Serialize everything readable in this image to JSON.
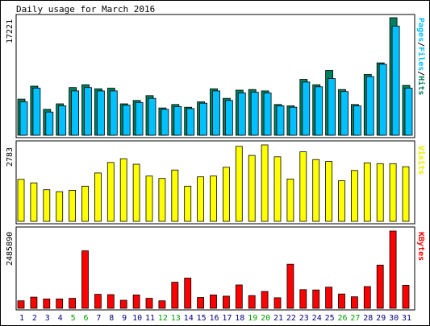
{
  "chart_data": {
    "type": "bar",
    "title": "Daily usage for March 2016",
    "categories": [
      "1",
      "2",
      "3",
      "4",
      "5",
      "6",
      "7",
      "8",
      "9",
      "10",
      "11",
      "12",
      "13",
      "14",
      "15",
      "16",
      "17",
      "18",
      "19",
      "20",
      "21",
      "22",
      "23",
      "24",
      "25",
      "26",
      "27",
      "28",
      "29",
      "30",
      "31"
    ],
    "weekend_days": [
      "5",
      "6",
      "12",
      "13",
      "19",
      "20",
      "26",
      "27"
    ],
    "colors": {
      "hits": "#00805c",
      "files": "#00c0ff",
      "visits": "#ffff00",
      "kbytes": "#ff0000",
      "weekend_label": "#00a000",
      "weekday_label": "#000080",
      "panel_bg": "#ffffff",
      "frame": "#000000"
    },
    "panels": [
      {
        "name": "hits-files",
        "ylabel": "Pages/Files/Hits",
        "ylabel_parts": [
          {
            "text": "Pages",
            "color": "#00c0ff"
          },
          {
            "text": "/",
            "color": "#000000"
          },
          {
            "text": "Files",
            "color": "#00c0ff"
          },
          {
            "text": "/",
            "color": "#000000"
          },
          {
            "text": "Hits",
            "color": "#00805c"
          }
        ],
        "max_label": "17221",
        "ylim": [
          0,
          17221
        ],
        "series": [
          {
            "name": "Hits",
            "color": "#00805c",
            "values": [
              5300,
              7200,
              3800,
              4600,
              7000,
              7400,
              6800,
              6900,
              4600,
              5100,
              5800,
              4000,
              4500,
              4100,
              4900,
              6800,
              5400,
              6600,
              6700,
              6500,
              4500,
              4300,
              8200,
              7400,
              9500,
              6700,
              4500,
              8900,
              10600,
              17221,
              7300
            ]
          },
          {
            "name": "Files",
            "color": "#00c0ff",
            "values": [
              4900,
              6900,
              3400,
              4300,
              6500,
              7000,
              6500,
              6500,
              4400,
              4800,
              5400,
              3800,
              4200,
              3900,
              4700,
              6500,
              5100,
              6200,
              6300,
              6200,
              4300,
              4100,
              7800,
              7100,
              8300,
              6400,
              4300,
              8600,
              10400,
              16000,
              6900
            ]
          }
        ]
      },
      {
        "name": "visits",
        "ylabel": "Visits",
        "ylabel_parts": [
          {
            "text": "Visits",
            "color": "#ffff00"
          }
        ],
        "max_label": "2783",
        "ylim": [
          0,
          2783
        ],
        "series": [
          {
            "name": "Visits",
            "color": "#ffff00",
            "values": [
              1530,
              1400,
              1150,
              1080,
              1130,
              1280,
              1760,
              2140,
              2280,
              2080,
              1650,
              1560,
              1870,
              1280,
              1620,
              1650,
              1970,
              2730,
              2400,
              2783,
              2350,
              1540,
              2530,
              2250,
              2180,
              1480,
              1850,
              2130,
              2100,
              2100,
              1990
            ]
          }
        ]
      },
      {
        "name": "kbytes",
        "ylabel": "KBytes",
        "ylabel_parts": [
          {
            "text": "KBytes",
            "color": "#ff0000"
          }
        ],
        "max_label": "2485890",
        "ylim": [
          0,
          2485890
        ],
        "series": [
          {
            "name": "KBytes",
            "color": "#ff0000",
            "values": [
              240000,
              360000,
              300000,
              300000,
              320000,
              1850000,
              450000,
              440000,
              260000,
              430000,
              320000,
              240000,
              840000,
              970000,
              350000,
              430000,
              390000,
              750000,
              410000,
              540000,
              340000,
              1420000,
              600000,
              590000,
              680000,
              460000,
              370000,
              700000,
              1390000,
              2485890,
              740000
            ]
          }
        ]
      }
    ]
  }
}
